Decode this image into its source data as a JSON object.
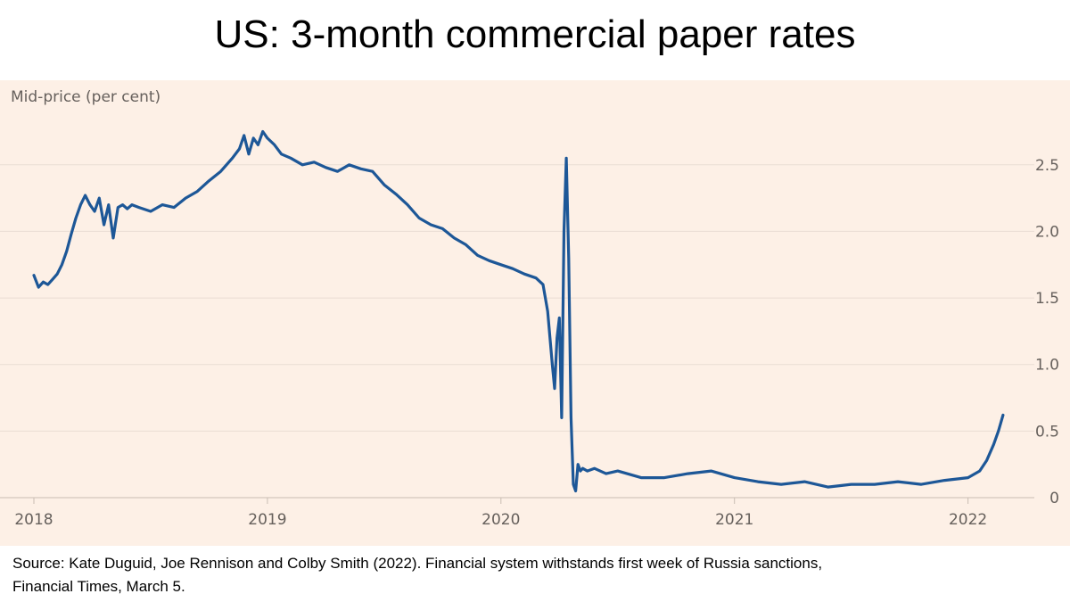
{
  "title": "US: 3-month commercial paper rates",
  "source": {
    "line1": "Source: Kate Duguid, Joe Rennison and Colby Smith (2022). Financial system withstands first week of Russia sanctions,",
    "line2": "Financial Times, March 5."
  },
  "colors": {
    "background": "#fdf0e6",
    "line": "#1d5797",
    "grid": "#e9ddd3",
    "axis_text": "#66605c"
  },
  "chart_data": {
    "type": "line",
    "title": "US: 3-month commercial paper rates",
    "ylabel": "Mid-price (per cent)",
    "xlabel": "",
    "x_unit": "year (decimal)",
    "xlim": [
      2018.0,
      2022.2
    ],
    "ylim": [
      0,
      2.8
    ],
    "x_ticks": [
      2018,
      2019,
      2020,
      2021,
      2022
    ],
    "y_ticks": [
      0,
      0.5,
      1.0,
      1.5,
      2.0,
      2.5
    ],
    "y_tick_labels": [
      "0",
      "0.5",
      "1.0",
      "1.5",
      "2.0",
      "2.5"
    ],
    "y_axis_side": "right",
    "grid": "horizontal",
    "series": [
      {
        "x": [
          2018.0,
          2018.02,
          2018.04,
          2018.06,
          2018.08,
          2018.1,
          2018.12,
          2018.14,
          2018.16,
          2018.18,
          2018.2,
          2018.22,
          2018.24,
          2018.26,
          2018.28,
          2018.3,
          2018.32,
          2018.34,
          2018.36,
          2018.38,
          2018.4,
          2018.42,
          2018.45,
          2018.5,
          2018.55,
          2018.6,
          2018.65,
          2018.7,
          2018.75,
          2018.8,
          2018.85,
          2018.88,
          2018.9,
          2018.92,
          2018.94,
          2018.96,
          2018.98,
          2019.0,
          2019.03,
          2019.06,
          2019.1,
          2019.15,
          2019.2,
          2019.25,
          2019.3,
          2019.35,
          2019.4,
          2019.45,
          2019.5,
          2019.55,
          2019.6,
          2019.65,
          2019.7,
          2019.75,
          2019.8,
          2019.85,
          2019.9,
          2019.95,
          2020.0,
          2020.05,
          2020.1,
          2020.15,
          2020.18,
          2020.2,
          2020.22,
          2020.23,
          2020.24,
          2020.25,
          2020.26,
          2020.27,
          2020.28,
          2020.29,
          2020.3,
          2020.31,
          2020.32,
          2020.33,
          2020.34,
          2020.35,
          2020.37,
          2020.4,
          2020.45,
          2020.5,
          2020.6,
          2020.7,
          2020.8,
          2020.9,
          2021.0,
          2021.1,
          2021.2,
          2021.3,
          2021.4,
          2021.5,
          2021.6,
          2021.7,
          2021.8,
          2021.9,
          2022.0,
          2022.05,
          2022.08,
          2022.11,
          2022.13,
          2022.15
        ],
        "y": [
          1.67,
          1.58,
          1.62,
          1.6,
          1.64,
          1.68,
          1.75,
          1.85,
          1.98,
          2.1,
          2.2,
          2.27,
          2.2,
          2.15,
          2.25,
          2.05,
          2.2,
          1.95,
          2.18,
          2.2,
          2.17,
          2.2,
          2.18,
          2.15,
          2.2,
          2.18,
          2.25,
          2.3,
          2.38,
          2.45,
          2.55,
          2.62,
          2.72,
          2.58,
          2.7,
          2.65,
          2.75,
          2.7,
          2.65,
          2.58,
          2.55,
          2.5,
          2.52,
          2.48,
          2.45,
          2.5,
          2.47,
          2.45,
          2.35,
          2.28,
          2.2,
          2.1,
          2.05,
          2.02,
          1.95,
          1.9,
          1.82,
          1.78,
          1.75,
          1.72,
          1.68,
          1.65,
          1.6,
          1.4,
          1.0,
          0.82,
          1.2,
          1.35,
          0.6,
          2.0,
          2.55,
          1.8,
          0.6,
          0.1,
          0.05,
          0.25,
          0.2,
          0.22,
          0.2,
          0.22,
          0.18,
          0.2,
          0.15,
          0.15,
          0.18,
          0.2,
          0.15,
          0.12,
          0.1,
          0.12,
          0.08,
          0.1,
          0.1,
          0.12,
          0.1,
          0.13,
          0.15,
          0.2,
          0.28,
          0.4,
          0.5,
          0.62
        ]
      }
    ]
  }
}
